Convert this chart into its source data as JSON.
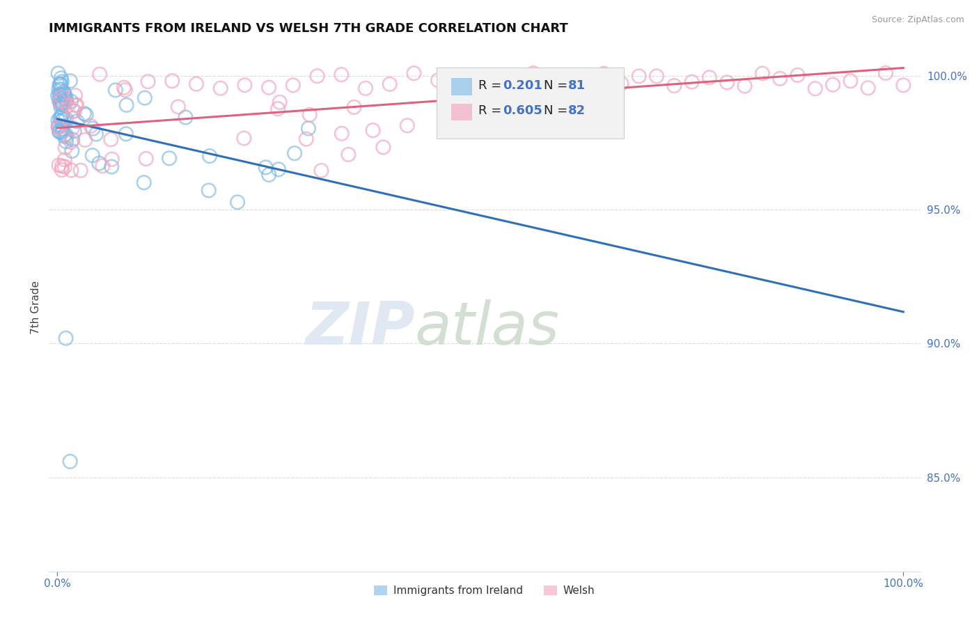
{
  "title": "IMMIGRANTS FROM IRELAND VS WELSH 7TH GRADE CORRELATION CHART",
  "source": "Source: ZipAtlas.com",
  "ylabel": "7th Grade",
  "xlim": [
    -0.01,
    1.02
  ],
  "ylim": [
    0.815,
    1.012
  ],
  "yticks": [
    0.85,
    0.9,
    0.95,
    1.0
  ],
  "ytick_labels": [
    "85.0%",
    "90.0%",
    "95.0%",
    "100.0%"
  ],
  "xtick_labels": [
    "0.0%",
    "100.0%"
  ],
  "xtick_vals": [
    0.0,
    1.0
  ],
  "blue_color": "#7ab8e8",
  "pink_color": "#f4a0b8",
  "blue_line_color": "#2e6fba",
  "pink_line_color": "#e06080",
  "legend_label_blue": "Immigrants from Ireland",
  "legend_label_pink": "Welsh",
  "tick_color": "#4472c4",
  "background_color": "#ffffff",
  "grid_color": "#cccccc",
  "title_fontsize": 13,
  "source_text": "Source: ZipAtlas.com"
}
